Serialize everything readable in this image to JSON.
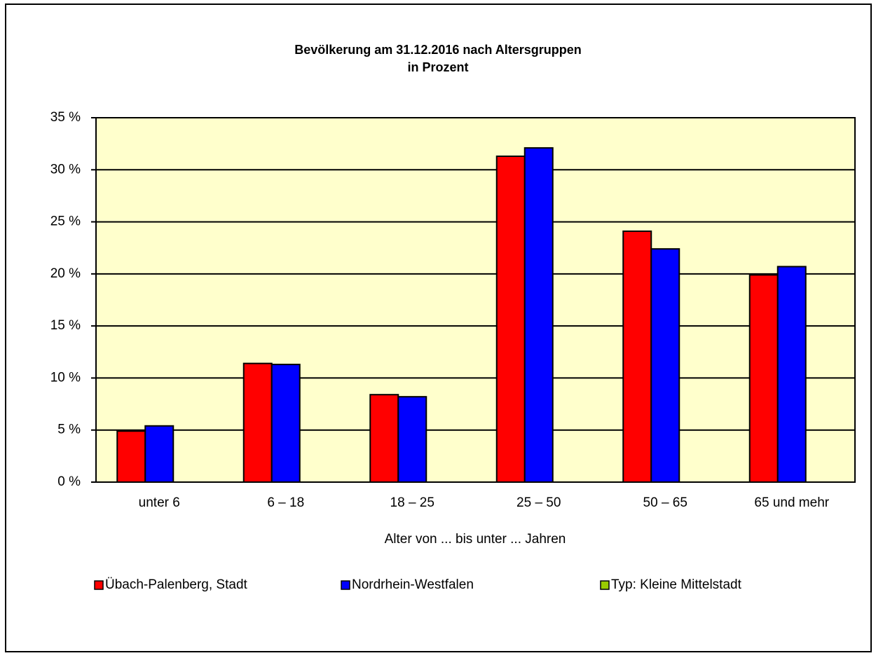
{
  "chart_data": {
    "type": "bar",
    "title": [
      "Bevölkerung am 31.12.2016 nach Altersgruppen",
      "in Prozent"
    ],
    "xlabel": "Alter von ... bis unter ... Jahren",
    "categories": [
      "unter 6",
      "6 – 18",
      "18 – 25",
      "25 – 50",
      "50 – 65",
      "65 und mehr"
    ],
    "series": [
      {
        "name": "Übach-Palenberg, Stadt",
        "color": "#ff0000",
        "values": [
          4.9,
          11.4,
          8.4,
          31.3,
          24.1,
          19.9
        ]
      },
      {
        "name": "Nordrhein-Westfalen",
        "color": "#0000ff",
        "values": [
          5.4,
          11.3,
          8.2,
          32.1,
          22.4,
          20.7
        ]
      },
      {
        "name": "Typ: Kleine Mittelstadt",
        "color": "#99cc00",
        "values": [
          null,
          null,
          null,
          null,
          null,
          null
        ]
      }
    ],
    "ylim": [
      0,
      35
    ],
    "yticks": [
      {
        "value": 0,
        "label": "0 %"
      },
      {
        "value": 5,
        "label": "5 %"
      },
      {
        "value": 10,
        "label": "10 %"
      },
      {
        "value": 15,
        "label": "15 %"
      },
      {
        "value": 20,
        "label": "20 %"
      },
      {
        "value": 25,
        "label": "25 %"
      },
      {
        "value": 30,
        "label": "30 %"
      },
      {
        "value": 35,
        "label": "35 %"
      }
    ],
    "grid": true,
    "legend": "bottom",
    "plot_background": "#ffffcc"
  }
}
